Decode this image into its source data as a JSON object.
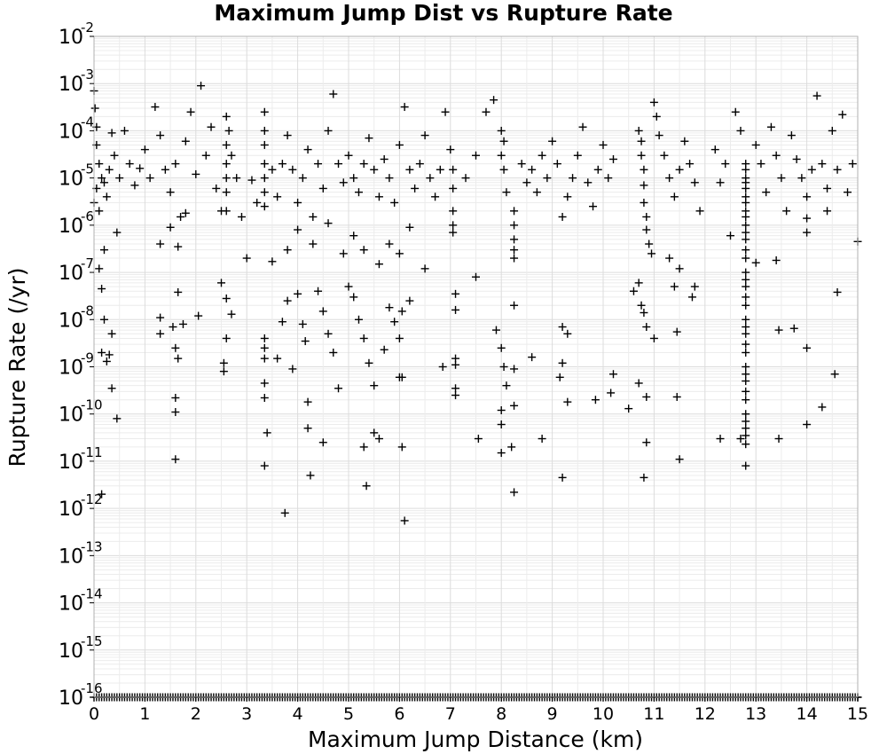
{
  "chart_data": {
    "type": "scatter",
    "title": "Maximum Jump Dist vs Rupture Rate",
    "xlabel": "Maximum Jump Distance (km)",
    "ylabel": "Rupture Rate (/yr)",
    "xlim": [
      0,
      15
    ],
    "ylim": [
      1e-16,
      0.01
    ],
    "yscale": "log",
    "grid": true,
    "marker": "+",
    "marker_color": "#000000",
    "x_ticks": [
      "0",
      "1",
      "2",
      "3",
      "4",
      "5",
      "6",
      "7",
      "8",
      "9",
      "10",
      "11",
      "12",
      "13",
      "14",
      "15"
    ],
    "y_ticks": [
      {
        "base": "10",
        "exp": "-2"
      },
      {
        "base": "10",
        "exp": "-3"
      },
      {
        "base": "10",
        "exp": "-4"
      },
      {
        "base": "10",
        "exp": "-5"
      },
      {
        "base": "10",
        "exp": "-6"
      },
      {
        "base": "10",
        "exp": "-7"
      },
      {
        "base": "10",
        "exp": "-8"
      },
      {
        "base": "10",
        "exp": "-9"
      },
      {
        "base": "10",
        "exp": "-10"
      },
      {
        "base": "10",
        "exp": "-11"
      },
      {
        "base": "10",
        "exp": "-12"
      },
      {
        "base": "10",
        "exp": "-13"
      },
      {
        "base": "10",
        "exp": "-14"
      },
      {
        "base": "10",
        "exp": "-15"
      },
      {
        "base": "10",
        "exp": "-16"
      }
    ],
    "points": [
      [
        0.0,
        0.0007
      ],
      [
        0.02,
        0.0003
      ],
      [
        0.05,
        0.00012
      ],
      [
        0.05,
        5e-05
      ],
      [
        0.1,
        2e-05
      ],
      [
        0.15,
        1e-05
      ],
      [
        0.2,
        8e-06
      ],
      [
        0.25,
        4e-06
      ],
      [
        0.3,
        1.5e-05
      ],
      [
        0.35,
        9e-05
      ],
      [
        0.4,
        3e-05
      ],
      [
        0.5,
        1e-05
      ],
      [
        0.45,
        7e-07
      ],
      [
        0.0,
        3e-06
      ],
      [
        0.05,
        6e-06
      ],
      [
        0.1,
        2e-06
      ],
      [
        0.2,
        3e-07
      ],
      [
        0.1,
        1.2e-07
      ],
      [
        0.15,
        4.5e-08
      ],
      [
        0.2,
        1e-08
      ],
      [
        0.35,
        5e-09
      ],
      [
        0.15,
        2e-09
      ],
      [
        0.3,
        1.8e-09
      ],
      [
        0.25,
        1.3e-09
      ],
      [
        0.35,
        3.5e-10
      ],
      [
        0.45,
        8e-11
      ],
      [
        0.15,
        2e-12
      ],
      [
        0.6,
        0.0001
      ],
      [
        0.7,
        2e-05
      ],
      [
        0.8,
        7e-06
      ],
      [
        0.9,
        1.6e-05
      ],
      [
        1.0,
        4e-05
      ],
      [
        1.1,
        1e-05
      ],
      [
        1.2,
        0.00032
      ],
      [
        1.3,
        8e-05
      ],
      [
        1.4,
        1.5e-05
      ],
      [
        1.5,
        5e-06
      ],
      [
        1.6,
        2e-05
      ],
      [
        1.7,
        1.5e-06
      ],
      [
        1.8,
        6e-05
      ],
      [
        1.9,
        0.00025
      ],
      [
        2.0,
        1.2e-05
      ],
      [
        2.1,
        0.0009
      ],
      [
        2.2,
        3e-05
      ],
      [
        2.3,
        0.00012
      ],
      [
        2.4,
        6e-06
      ],
      [
        2.5,
        2e-06
      ],
      [
        1.3,
        4e-07
      ],
      [
        1.5,
        9e-07
      ],
      [
        1.65,
        3.5e-07
      ],
      [
        1.8,
        1.8e-06
      ],
      [
        1.3,
        1.1e-08
      ],
      [
        1.3,
        5e-09
      ],
      [
        1.55,
        7e-09
      ],
      [
        1.6,
        2.5e-09
      ],
      [
        1.65,
        1.5e-09
      ],
      [
        1.75,
        8e-09
      ],
      [
        1.65,
        3.8e-08
      ],
      [
        2.05,
        1.2e-08
      ],
      [
        1.6,
        2.2e-10
      ],
      [
        1.6,
        1.1e-10
      ],
      [
        1.6,
        1.1e-11
      ],
      [
        2.6,
        0.0002
      ],
      [
        2.65,
        0.0001
      ],
      [
        2.6,
        5e-05
      ],
      [
        2.6,
        2e-05
      ],
      [
        2.6,
        1e-05
      ],
      [
        2.6,
        5e-06
      ],
      [
        2.6,
        2e-06
      ],
      [
        2.7,
        3e-05
      ],
      [
        2.8,
        1e-05
      ],
      [
        2.9,
        1.5e-06
      ],
      [
        3.0,
        2e-07
      ],
      [
        3.1,
        9e-06
      ],
      [
        3.2,
        3e-06
      ],
      [
        2.5,
        6e-08
      ],
      [
        2.6,
        2.8e-08
      ],
      [
        2.7,
        1.3e-08
      ],
      [
        2.6,
        4e-09
      ],
      [
        2.55,
        1.2e-09
      ],
      [
        2.55,
        8e-10
      ],
      [
        3.35,
        0.00025
      ],
      [
        3.35,
        0.0001
      ],
      [
        3.35,
        5e-05
      ],
      [
        3.35,
        2e-05
      ],
      [
        3.35,
        1e-05
      ],
      [
        3.35,
        5e-06
      ],
      [
        3.35,
        2.5e-06
      ],
      [
        3.5,
        1.5e-05
      ],
      [
        3.6,
        4e-06
      ],
      [
        3.7,
        2e-05
      ],
      [
        3.8,
        8e-05
      ],
      [
        3.9,
        1.5e-05
      ],
      [
        4.0,
        3e-06
      ],
      [
        4.1,
        1e-05
      ],
      [
        4.2,
        4e-05
      ],
      [
        4.3,
        1.5e-06
      ],
      [
        4.4,
        2e-05
      ],
      [
        4.5,
        6e-06
      ],
      [
        4.6,
        0.0001
      ],
      [
        4.7,
        0.0006
      ],
      [
        4.8,
        2e-05
      ],
      [
        4.9,
        8e-06
      ],
      [
        5.0,
        3e-05
      ],
      [
        5.1,
        1e-05
      ],
      [
        5.2,
        5e-06
      ],
      [
        5.3,
        2e-05
      ],
      [
        5.4,
        7e-05
      ],
      [
        5.5,
        1.5e-05
      ],
      [
        5.6,
        4e-06
      ],
      [
        5.7,
        2.5e-05
      ],
      [
        5.8,
        1e-05
      ],
      [
        5.9,
        3e-06
      ],
      [
        6.0,
        5e-05
      ],
      [
        6.1,
        0.00032
      ],
      [
        6.2,
        1.5e-05
      ],
      [
        6.3,
        6e-06
      ],
      [
        6.4,
        2e-05
      ],
      [
        6.5,
        8e-05
      ],
      [
        6.6,
        1e-05
      ],
      [
        6.7,
        4e-06
      ],
      [
        6.8,
        1.5e-05
      ],
      [
        6.9,
        0.00025
      ],
      [
        3.5,
        1.7e-07
      ],
      [
        3.8,
        3e-07
      ],
      [
        4.0,
        8e-07
      ],
      [
        4.3,
        4e-07
      ],
      [
        4.6,
        1.1e-06
      ],
      [
        4.9,
        2.5e-07
      ],
      [
        5.1,
        6e-07
      ],
      [
        5.3,
        3e-07
      ],
      [
        5.6,
        1.5e-07
      ],
      [
        5.8,
        4e-07
      ],
      [
        6.0,
        2.5e-07
      ],
      [
        6.2,
        9e-07
      ],
      [
        6.5,
        1.2e-07
      ],
      [
        3.35,
        4e-09
      ],
      [
        3.35,
        2.5e-09
      ],
      [
        3.35,
        1.5e-09
      ],
      [
        3.35,
        4.5e-10
      ],
      [
        3.35,
        2.2e-10
      ],
      [
        3.4,
        4e-11
      ],
      [
        3.35,
        8e-12
      ],
      [
        3.6,
        1.5e-09
      ],
      [
        3.7,
        9e-09
      ],
      [
        3.8,
        2.5e-08
      ],
      [
        3.9,
        9e-10
      ],
      [
        4.0,
        3.5e-08
      ],
      [
        4.1,
        8e-09
      ],
      [
        4.15,
        3.5e-09
      ],
      [
        4.2,
        1.8e-10
      ],
      [
        4.2,
        5e-11
      ],
      [
        4.25,
        5e-12
      ],
      [
        3.75,
        8e-13
      ],
      [
        4.4,
        4e-08
      ],
      [
        4.5,
        1.5e-08
      ],
      [
        4.6,
        5e-09
      ],
      [
        4.7,
        2e-09
      ],
      [
        4.8,
        3.5e-10
      ],
      [
        4.5,
        2.5e-11
      ],
      [
        5.0,
        5e-08
      ],
      [
        5.1,
        3e-08
      ],
      [
        5.2,
        1e-08
      ],
      [
        5.3,
        4e-09
      ],
      [
        5.4,
        1.2e-09
      ],
      [
        5.5,
        4e-10
      ],
      [
        5.3,
        2e-11
      ],
      [
        5.35,
        3e-12
      ],
      [
        5.5,
        4e-11
      ],
      [
        5.6,
        3e-11
      ],
      [
        5.7,
        2.3e-09
      ],
      [
        5.8,
        1.8e-08
      ],
      [
        5.9,
        9e-09
      ],
      [
        6.0,
        4e-09
      ],
      [
        6.0,
        6e-10
      ],
      [
        6.05,
        6e-10
      ],
      [
        6.05,
        2e-11
      ],
      [
        6.1,
        5.5e-13
      ],
      [
        6.2,
        2.5e-08
      ],
      [
        6.05,
        1.5e-08
      ],
      [
        7.0,
        4e-05
      ],
      [
        7.05,
        1.5e-05
      ],
      [
        7.05,
        6e-06
      ],
      [
        7.05,
        2e-06
      ],
      [
        7.05,
        1e-06
      ],
      [
        7.05,
        7e-07
      ],
      [
        7.1,
        3.5e-08
      ],
      [
        7.1,
        1.6e-08
      ],
      [
        7.1,
        1.5e-09
      ],
      [
        7.1,
        1.1e-09
      ],
      [
        7.1,
        3.5e-10
      ],
      [
        7.1,
        2.5e-10
      ],
      [
        6.85,
        1e-09
      ],
      [
        7.5,
        8e-08
      ],
      [
        7.55,
        3e-11
      ],
      [
        7.3,
        1e-05
      ],
      [
        7.5,
        3e-05
      ],
      [
        7.7,
        0.00025
      ],
      [
        7.85,
        0.00045
      ],
      [
        8.0,
        0.0001
      ],
      [
        8.05,
        6e-05
      ],
      [
        8.0,
        3e-05
      ],
      [
        8.05,
        1.5e-05
      ],
      [
        8.1,
        5e-06
      ],
      [
        8.25,
        2e-06
      ],
      [
        8.25,
        1e-06
      ],
      [
        8.25,
        5e-07
      ],
      [
        8.25,
        3e-07
      ],
      [
        8.25,
        2e-07
      ],
      [
        7.9,
        6e-09
      ],
      [
        8.0,
        2.5e-09
      ],
      [
        8.05,
        1e-09
      ],
      [
        8.1,
        4e-10
      ],
      [
        8.0,
        1.2e-10
      ],
      [
        8.0,
        6e-11
      ],
      [
        8.0,
        1.5e-11
      ],
      [
        8.2,
        2e-11
      ],
      [
        8.25,
        2.2e-12
      ],
      [
        8.25,
        2e-08
      ],
      [
        8.25,
        9e-10
      ],
      [
        8.25,
        1.5e-10
      ],
      [
        8.4,
        2e-05
      ],
      [
        8.5,
        8e-06
      ],
      [
        8.6,
        1.5e-05
      ],
      [
        8.7,
        5e-06
      ],
      [
        8.8,
        3e-05
      ],
      [
        8.9,
        1e-05
      ],
      [
        9.0,
        6e-05
      ],
      [
        9.1,
        2e-05
      ],
      [
        9.2,
        1.5e-06
      ],
      [
        9.3,
        4e-06
      ],
      [
        9.4,
        1e-05
      ],
      [
        9.5,
        3e-05
      ],
      [
        9.6,
        0.00012
      ],
      [
        9.7,
        8e-06
      ],
      [
        9.8,
        2.5e-06
      ],
      [
        9.9,
        1.5e-05
      ],
      [
        10.0,
        5e-05
      ],
      [
        10.1,
        1e-05
      ],
      [
        10.2,
        2.5e-05
      ],
      [
        8.6,
        1.6e-09
      ],
      [
        8.8,
        3e-11
      ],
      [
        9.2,
        1.2e-09
      ],
      [
        9.15,
        6e-10
      ],
      [
        9.3,
        1.8e-10
      ],
      [
        9.2,
        7e-09
      ],
      [
        9.3,
        5e-09
      ],
      [
        9.2,
        4.5e-12
      ],
      [
        9.85,
        2e-10
      ],
      [
        10.15,
        2.8e-10
      ],
      [
        10.2,
        7e-10
      ],
      [
        10.5,
        1.3e-10
      ],
      [
        10.7,
        0.0001
      ],
      [
        10.75,
        6e-05
      ],
      [
        10.75,
        3e-05
      ],
      [
        10.8,
        1.5e-05
      ],
      [
        10.8,
        7e-06
      ],
      [
        10.8,
        3e-06
      ],
      [
        10.85,
        1.5e-06
      ],
      [
        10.85,
        8e-07
      ],
      [
        10.9,
        4e-07
      ],
      [
        10.95,
        2.5e-07
      ],
      [
        11.0,
        0.0004
      ],
      [
        11.05,
        0.0002
      ],
      [
        11.1,
        8e-05
      ],
      [
        11.2,
        3e-05
      ],
      [
        11.3,
        1e-05
      ],
      [
        11.4,
        4e-06
      ],
      [
        11.5,
        1.5e-05
      ],
      [
        11.6,
        6e-05
      ],
      [
        11.7,
        2e-05
      ],
      [
        11.8,
        8e-06
      ],
      [
        11.9,
        2e-06
      ],
      [
        10.6,
        4e-08
      ],
      [
        10.7,
        6e-08
      ],
      [
        10.75,
        2e-08
      ],
      [
        10.8,
        1.4e-08
      ],
      [
        10.85,
        7e-09
      ],
      [
        11.0,
        4e-09
      ],
      [
        11.3,
        2e-07
      ],
      [
        11.4,
        5e-08
      ],
      [
        11.5,
        1.2e-07
      ],
      [
        11.8,
        5e-08
      ],
      [
        11.75,
        3e-08
      ],
      [
        11.45,
        5.5e-09
      ],
      [
        10.7,
        4.5e-10
      ],
      [
        10.85,
        2.3e-10
      ],
      [
        10.85,
        2.5e-11
      ],
      [
        10.8,
        4.5e-12
      ],
      [
        11.45,
        2.3e-10
      ],
      [
        11.5,
        1.1e-11
      ],
      [
        12.2,
        4e-05
      ],
      [
        12.3,
        8e-06
      ],
      [
        12.4,
        2e-05
      ],
      [
        12.5,
        6e-07
      ],
      [
        12.6,
        0.00025
      ],
      [
        12.7,
        0.0001
      ],
      [
        12.7,
        3e-11
      ],
      [
        12.8,
        3.5e-11
      ],
      [
        12.3,
        3e-11
      ],
      [
        12.8,
        8e-12
      ],
      [
        12.8,
        2e-05
      ],
      [
        12.8,
        1.5e-05
      ],
      [
        12.8,
        1e-05
      ],
      [
        12.8,
        8e-06
      ],
      [
        12.8,
        6e-06
      ],
      [
        12.8,
        4e-06
      ],
      [
        12.8,
        3e-06
      ],
      [
        12.8,
        2e-06
      ],
      [
        12.8,
        1.5e-06
      ],
      [
        12.8,
        1e-06
      ],
      [
        12.8,
        7e-07
      ],
      [
        12.8,
        5e-07
      ],
      [
        12.8,
        3e-07
      ],
      [
        12.8,
        2e-07
      ],
      [
        12.8,
        1e-07
      ],
      [
        12.8,
        7e-08
      ],
      [
        12.8,
        5e-08
      ],
      [
        12.8,
        3e-08
      ],
      [
        12.8,
        2e-08
      ],
      [
        12.8,
        1e-08
      ],
      [
        12.8,
        7e-09
      ],
      [
        12.8,
        5e-09
      ],
      [
        12.8,
        3e-09
      ],
      [
        12.8,
        2e-09
      ],
      [
        12.8,
        1e-09
      ],
      [
        12.8,
        7e-10
      ],
      [
        12.8,
        5e-10
      ],
      [
        12.8,
        3e-10
      ],
      [
        12.8,
        2e-10
      ],
      [
        12.8,
        1e-10
      ],
      [
        12.8,
        7e-11
      ],
      [
        12.8,
        5e-11
      ],
      [
        12.8,
        2.3e-11
      ],
      [
        13.0,
        5e-05
      ],
      [
        13.1,
        2e-05
      ],
      [
        13.2,
        5e-06
      ],
      [
        13.3,
        0.00012
      ],
      [
        13.4,
        3e-05
      ],
      [
        13.5,
        1e-05
      ],
      [
        13.6,
        2e-06
      ],
      [
        13.7,
        8e-05
      ],
      [
        13.8,
        2.5e-05
      ],
      [
        13.9,
        1e-05
      ],
      [
        14.0,
        4e-06
      ],
      [
        14.1,
        1.5e-05
      ],
      [
        14.2,
        0.00055
      ],
      [
        14.3,
        2e-05
      ],
      [
        14.4,
        6e-06
      ],
      [
        14.5,
        0.0001
      ],
      [
        14.6,
        1.5e-05
      ],
      [
        14.7,
        0.00022
      ],
      [
        14.8,
        5e-06
      ],
      [
        14.9,
        2e-05
      ],
      [
        15.0,
        4.5e-07
      ],
      [
        13.0,
        1.6e-07
      ],
      [
        13.4,
        1.8e-07
      ],
      [
        14.0,
        1.4e-06
      ],
      [
        14.0,
        7e-07
      ],
      [
        14.4,
        2e-06
      ],
      [
        14.6,
        3.8e-08
      ],
      [
        13.45,
        6e-09
      ],
      [
        13.75,
        6.5e-09
      ],
      [
        14.0,
        2.5e-09
      ],
      [
        14.55,
        7e-10
      ],
      [
        14.3,
        1.4e-10
      ],
      [
        14.0,
        6e-11
      ],
      [
        13.45,
        3e-11
      ]
    ],
    "floor_points": [
      0.0,
      0.1,
      0.2,
      0.3,
      0.4,
      0.5,
      0.6,
      0.7,
      0.8,
      0.9,
      1.0,
      1.1,
      1.2,
      1.3,
      1.4,
      1.5,
      1.6,
      1.7,
      1.8,
      1.9,
      2.0,
      2.1,
      2.2,
      2.3,
      2.4,
      2.5,
      2.6,
      2.7,
      2.8,
      2.9,
      3.0,
      3.1,
      3.2,
      3.3,
      3.4,
      3.5,
      3.6,
      3.7,
      3.8,
      3.9,
      4.0,
      4.1,
      4.2,
      4.3,
      4.4,
      4.5,
      4.6,
      4.7,
      4.8,
      4.9,
      5.0,
      5.1,
      5.2,
      5.3,
      5.4,
      5.5,
      5.6,
      5.7,
      5.8,
      5.9,
      6.0,
      6.1,
      6.2,
      6.3,
      6.4,
      6.5,
      6.6,
      6.7,
      6.8,
      6.9,
      7.0,
      7.1,
      7.2,
      7.3,
      7.4,
      7.5,
      7.6,
      7.7,
      7.8,
      7.9,
      8.0,
      8.1,
      8.2,
      8.3,
      8.4,
      8.5,
      8.6,
      8.7,
      8.8,
      8.9,
      9.0,
      9.1,
      9.2,
      9.3,
      9.4,
      9.5,
      9.6,
      9.7,
      9.8,
      9.9,
      10.0,
      10.1,
      10.2,
      10.3,
      10.4,
      10.5,
      10.6,
      10.7,
      10.8,
      10.9,
      11.0,
      11.1,
      11.2,
      11.3,
      11.4,
      11.5,
      11.6,
      11.7,
      11.8,
      11.9,
      12.0,
      12.1,
      12.2,
      12.3,
      12.4,
      12.5,
      12.6,
      12.7,
      12.8,
      12.9,
      13.0,
      13.1,
      13.2,
      13.3,
      13.4,
      13.5,
      13.6,
      13.7,
      13.8,
      13.9,
      14.0,
      14.1,
      14.2,
      14.3,
      14.4,
      14.5,
      14.6,
      14.7,
      14.8,
      14.9,
      15.0
    ]
  }
}
